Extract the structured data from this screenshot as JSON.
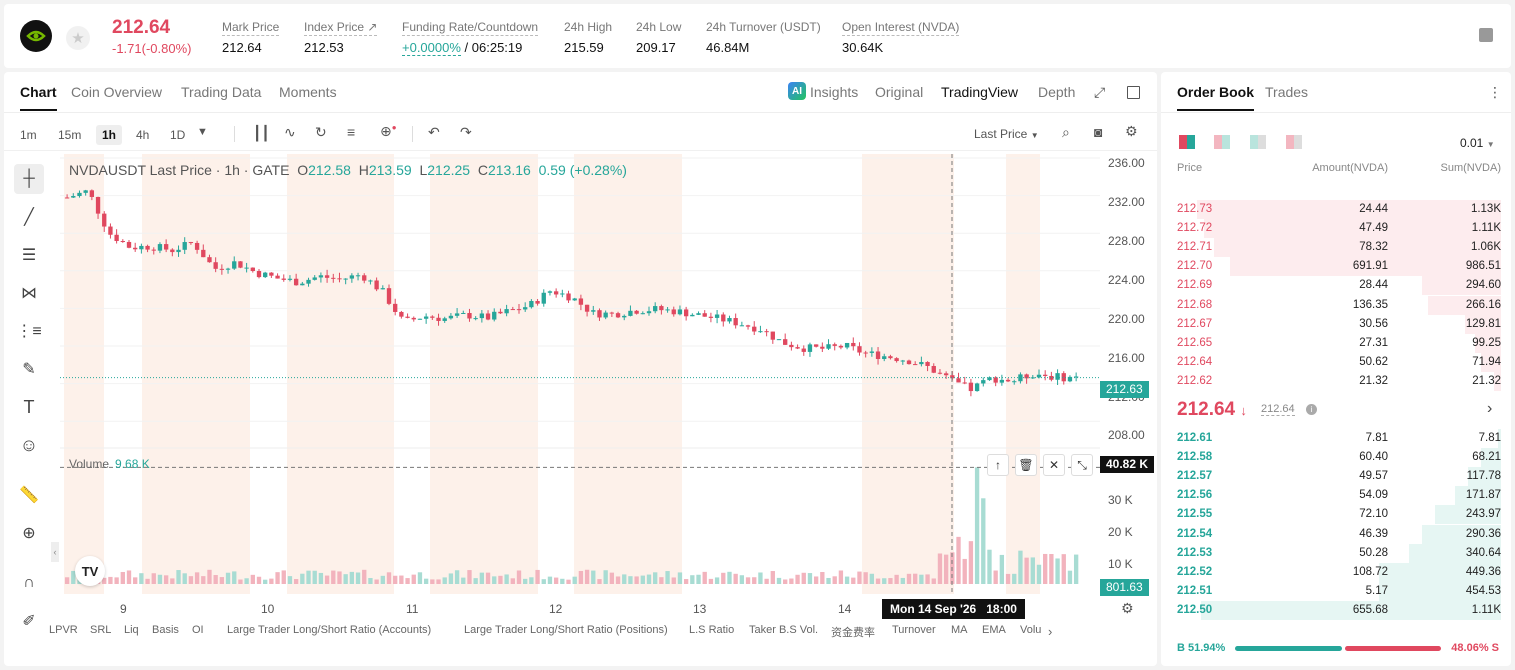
{
  "header": {
    "last_price": "212.64",
    "change": "-1.71(-0.80%)",
    "stats": [
      {
        "label": "Mark Price",
        "value": "212.64"
      },
      {
        "label": "Index Price ↗",
        "value": "212.53"
      },
      {
        "label": "Funding Rate/Countdown",
        "value": "+0.0000%",
        "value2": "/ 06:25:19"
      },
      {
        "label": "24h High",
        "value": "215.59"
      },
      {
        "label": "24h Low",
        "value": "209.17"
      },
      {
        "label": "24h Turnover (USDT)",
        "value": "46.84M"
      },
      {
        "label": "Open Interest (NVDA)",
        "value": "30.64K"
      }
    ]
  },
  "chart_tabs": {
    "chart": "Chart",
    "coin_overview": "Coin Overview",
    "trading_data": "Trading Data",
    "moments": "Moments",
    "insights": "Insights",
    "original": "Original",
    "tradingview": "TradingView",
    "depth": "Depth"
  },
  "intervals": {
    "m1": "1m",
    "m15": "15m",
    "h1": "1h",
    "h4": "4h",
    "d1": "1D"
  },
  "price_type": "Last Price",
  "ohlc": {
    "symbol": "NVDAUSDT Last Price · 1h · GATE",
    "o_label": "O",
    "o": "212.58",
    "h_label": "H",
    "h": "213.59",
    "l_label": "L",
    "l": "212.25",
    "c_label": "C",
    "c": "213.16",
    "chg": "0.59 (+0.28%)"
  },
  "volume": {
    "label": "Volume",
    "value": "9.68 K"
  },
  "tags": {
    "price": "212.63",
    "vol_cross": "40.82 K",
    "vol_last": "801.63"
  },
  "tooltip": {
    "date": "Mon 14 Sep '26",
    "time": "18:00"
  },
  "y_ticks": [
    "236.00",
    "232.00",
    "228.00",
    "224.00",
    "220.00",
    "216.00",
    "212.00",
    "208.00"
  ],
  "vol_ticks": [
    "30 K",
    "20 K",
    "10 K"
  ],
  "x_ticks": [
    "9",
    "10",
    "11",
    "12",
    "13",
    "14"
  ],
  "indicators": [
    "LPVR",
    "SRL",
    "Liq",
    "Basis",
    "OI",
    "Large Trader Long/Short Ratio (Accounts)",
    "Large Trader Long/Short Ratio (Positions)",
    "L.S Ratio",
    "Taker B.S Vol.",
    "资金费率",
    "Turnover",
    "MA",
    "EMA",
    "Volu"
  ],
  "colors": {
    "up": "#26a69a",
    "down": "#e0485f",
    "accent": "#e0485f"
  },
  "chart_data": {
    "type": "candlestick",
    "ylim": [
      206,
      236
    ],
    "vol_ylim": [
      0,
      42000
    ],
    "x_labels": [
      "9",
      "10",
      "11",
      "12",
      "13",
      "14"
    ],
    "anchors_close": [
      231.8,
      232.5,
      228.0,
      226.5,
      226.6,
      226.2,
      227.0,
      224.2,
      224.9,
      223.8,
      223.2,
      222.8,
      223.4,
      223.1,
      223.6,
      221.8,
      218.5,
      219.2,
      218.9,
      219.3,
      219.0,
      219.7,
      220.3,
      221.9,
      221.2,
      219.5,
      219.4,
      219.8,
      219.9,
      219.7,
      219.3,
      218.9,
      218.4,
      217.8,
      216.4,
      215.8,
      215.7,
      216.0,
      215.2,
      214.9,
      214.5,
      213.7,
      212.3,
      211.4,
      212.6,
      212.3,
      213.1,
      212.7,
      212.63
    ],
    "volume_highlights": [
      {
        "x_label": "14 18:00",
        "value": 40820
      }
    ],
    "last_volume": 801.63
  },
  "orderbook": {
    "tab_book": "Order Book",
    "tab_trades": "Trades",
    "precision": "0.01",
    "col_price": "Price",
    "col_amount": "Amount(NVDA)",
    "col_sum": "Sum(NVDA)",
    "asks": [
      {
        "p": "212.73",
        "a": "24.44",
        "s": "1.13K",
        "d": 0.92
      },
      {
        "p": "212.72",
        "a": "47.49",
        "s": "1.11K",
        "d": 0.9
      },
      {
        "p": "212.71",
        "a": "78.32",
        "s": "1.06K",
        "d": 0.87
      },
      {
        "p": "212.70",
        "a": "691.91",
        "s": "986.51",
        "d": 0.82
      },
      {
        "p": "212.69",
        "a": "28.44",
        "s": "294.60",
        "d": 0.24
      },
      {
        "p": "212.68",
        "a": "136.35",
        "s": "266.16",
        "d": 0.22
      },
      {
        "p": "212.67",
        "a": "30.56",
        "s": "129.81",
        "d": 0.11
      },
      {
        "p": "212.65",
        "a": "27.31",
        "s": "99.25",
        "d": 0.08
      },
      {
        "p": "212.64",
        "a": "50.62",
        "s": "71.94",
        "d": 0.06
      },
      {
        "p": "212.62",
        "a": "21.32",
        "s": "21.32",
        "d": 0.02
      }
    ],
    "mid_price": "212.64",
    "mid_mark": "212.64",
    "bids": [
      {
        "p": "212.61",
        "a": "7.81",
        "s": "7.81",
        "d": 0.01
      },
      {
        "p": "212.58",
        "a": "60.40",
        "s": "68.21",
        "d": 0.06
      },
      {
        "p": "212.57",
        "a": "49.57",
        "s": "117.78",
        "d": 0.1
      },
      {
        "p": "212.56",
        "a": "54.09",
        "s": "171.87",
        "d": 0.14
      },
      {
        "p": "212.55",
        "a": "72.10",
        "s": "243.97",
        "d": 0.2
      },
      {
        "p": "212.54",
        "a": "46.39",
        "s": "290.36",
        "d": 0.24
      },
      {
        "p": "212.53",
        "a": "50.28",
        "s": "340.64",
        "d": 0.28
      },
      {
        "p": "212.52",
        "a": "108.72",
        "s": "449.36",
        "d": 0.37
      },
      {
        "p": "212.51",
        "a": "5.17",
        "s": "454.53",
        "d": 0.37
      },
      {
        "p": "212.50",
        "a": "655.68",
        "s": "1.11K",
        "d": 0.91
      }
    ],
    "buy_pct": "B 51.94%",
    "sell_pct": "48.06% S",
    "buy_ratio": 0.5194
  }
}
